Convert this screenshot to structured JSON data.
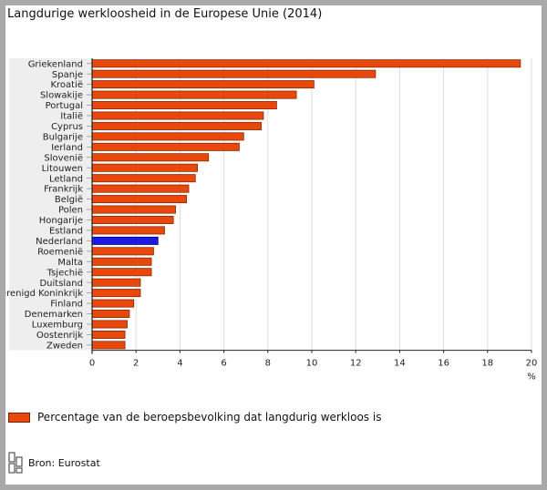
{
  "chart_data": {
    "type": "bar",
    "orientation": "horizontal",
    "title": "Langdurige werkloosheid in de Europese Unie (2014)",
    "categories": [
      "Griekenland",
      "Spanje",
      "Kroatië",
      "Slowakije",
      "Portugal",
      "Italië",
      "Cyprus",
      "Bulgarije",
      "Ierland",
      "Slovenië",
      "Litouwen",
      "Letland",
      "Frankrijk",
      "België",
      "Polen",
      "Hongarije",
      "Estland",
      "Nederland",
      "Roemenië",
      "Malta",
      "Tsjechië",
      "Duitsland",
      "Verenigd Koninkrijk",
      "Finland",
      "Denemarken",
      "Luxemburg",
      "Oostenrijk",
      "Zweden"
    ],
    "values": [
      19.5,
      12.9,
      10.1,
      9.3,
      8.4,
      7.8,
      7.7,
      6.9,
      6.7,
      5.3,
      4.8,
      4.7,
      4.4,
      4.3,
      3.8,
      3.7,
      3.3,
      3.0,
      2.8,
      2.7,
      2.7,
      2.2,
      2.2,
      1.9,
      1.7,
      1.6,
      1.5,
      1.5
    ],
    "highlight": "Nederland",
    "xlim": [
      0,
      20
    ],
    "xticks": [
      "0",
      "2",
      "4",
      "6",
      "8",
      "10",
      "12",
      "14",
      "16",
      "18",
      "20"
    ],
    "xlabel": "%",
    "bar_color": "#e8480c",
    "highlight_color": "#1a1ae0",
    "legend": "Percentage van de beroepsbevolking dat langdurig werkloos is",
    "source": "Bron: Eurostat"
  }
}
